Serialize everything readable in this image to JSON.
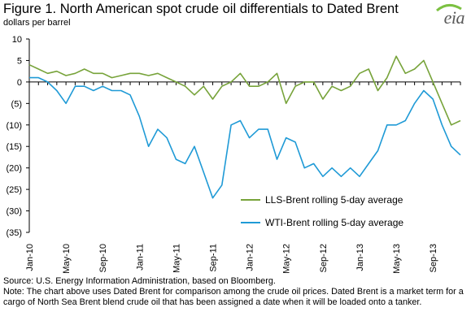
{
  "header": {
    "title": "Figure 1. North American spot crude oil differentials to Dated Brent",
    "unit": "dollars per barrel",
    "logo_text": "eia"
  },
  "footer": {
    "source": "Source: U.S. Energy Information Administration, based on Bloomberg.",
    "note": "Note: The chart above uses Dated Brent for comparison among the crude oil prices. Dated Brent is a market term for a cargo of North Sea Brent blend crude oil that has been assigned a date when it will be loaded onto a tanker."
  },
  "colors": {
    "lls": "#77a33a",
    "wti": "#1f9ad6",
    "axis": "#000000"
  },
  "chart_data": {
    "type": "line",
    "title": "Figure 1. North American spot crude oil differentials to Dated Brent",
    "ylabel": "dollars per barrel",
    "ylim": [
      -35,
      10
    ],
    "yticks": [
      10,
      5,
      0,
      -5,
      -10,
      -15,
      -20,
      -25,
      -30,
      -35
    ],
    "ytick_labels": [
      "10",
      "5",
      "0",
      "(5)",
      "(10)",
      "(15)",
      "(20)",
      "(25)",
      "(30)",
      "(35)"
    ],
    "xlim": [
      "Jan-10",
      "Dec-13"
    ],
    "xticks": [
      "Jan-10",
      "May-10",
      "Sep-10",
      "Jan-11",
      "May-11",
      "Sep-11",
      "Jan-12",
      "May-12",
      "Sep-12",
      "Jan-13",
      "May-13",
      "Sep-13"
    ],
    "grid": false,
    "legend_position": "bottom-right",
    "series": [
      {
        "name": "LLS-Brent rolling 5-day average",
        "x": [
          "Jan-10",
          "Feb-10",
          "Mar-10",
          "Apr-10",
          "May-10",
          "Jun-10",
          "Jul-10",
          "Aug-10",
          "Sep-10",
          "Oct-10",
          "Nov-10",
          "Dec-10",
          "Jan-11",
          "Feb-11",
          "Mar-11",
          "Apr-11",
          "May-11",
          "Jun-11",
          "Jul-11",
          "Aug-11",
          "Sep-11",
          "Oct-11",
          "Nov-11",
          "Dec-11",
          "Jan-12",
          "Feb-12",
          "Mar-12",
          "Apr-12",
          "May-12",
          "Jun-12",
          "Jul-12",
          "Aug-12",
          "Sep-12",
          "Oct-12",
          "Nov-12",
          "Dec-12",
          "Jan-13",
          "Feb-13",
          "Mar-13",
          "Apr-13",
          "May-13",
          "Jun-13",
          "Jul-13",
          "Aug-13",
          "Sep-13",
          "Oct-13",
          "Nov-13",
          "Dec-13"
        ],
        "values": [
          4,
          3,
          2,
          2.5,
          1.5,
          2,
          3,
          2,
          2,
          1,
          1.5,
          2,
          2,
          1.5,
          2,
          1,
          0,
          -1,
          -3,
          -1,
          -4,
          -1,
          0,
          2,
          -1,
          -1,
          0,
          2,
          -5,
          -1,
          0,
          0,
          -4,
          -1,
          -2,
          -1,
          2,
          3,
          -2,
          1,
          6,
          2,
          3,
          5,
          0,
          -5,
          -10,
          -9
        ]
      },
      {
        "name": "WTI-Brent rolling 5-day average",
        "x": [
          "Jan-10",
          "Feb-10",
          "Mar-10",
          "Apr-10",
          "May-10",
          "Jun-10",
          "Jul-10",
          "Aug-10",
          "Sep-10",
          "Oct-10",
          "Nov-10",
          "Dec-10",
          "Jan-11",
          "Feb-11",
          "Mar-11",
          "Apr-11",
          "May-11",
          "Jun-11",
          "Jul-11",
          "Aug-11",
          "Sep-11",
          "Oct-11",
          "Nov-11",
          "Dec-11",
          "Jan-12",
          "Feb-12",
          "Mar-12",
          "Apr-12",
          "May-12",
          "Jun-12",
          "Jul-12",
          "Aug-12",
          "Sep-12",
          "Oct-12",
          "Nov-12",
          "Dec-12",
          "Jan-13",
          "Feb-13",
          "Mar-13",
          "Apr-13",
          "May-13",
          "Jun-13",
          "Jul-13",
          "Aug-13",
          "Sep-13",
          "Oct-13",
          "Nov-13",
          "Dec-13"
        ],
        "values": [
          1,
          1,
          0,
          -2,
          -5,
          -1,
          -1,
          -2,
          -1,
          -2,
          -2,
          -3,
          -8,
          -15,
          -11,
          -13,
          -18,
          -19,
          -15,
          -21,
          -27,
          -24,
          -10,
          -9,
          -13,
          -11,
          -11,
          -18,
          -13,
          -14,
          -20,
          -19,
          -22,
          -20,
          -22,
          -20,
          -22,
          -19,
          -16,
          -10,
          -10,
          -9,
          -5,
          -2,
          -4,
          -10,
          -15,
          -17
        ]
      }
    ]
  }
}
